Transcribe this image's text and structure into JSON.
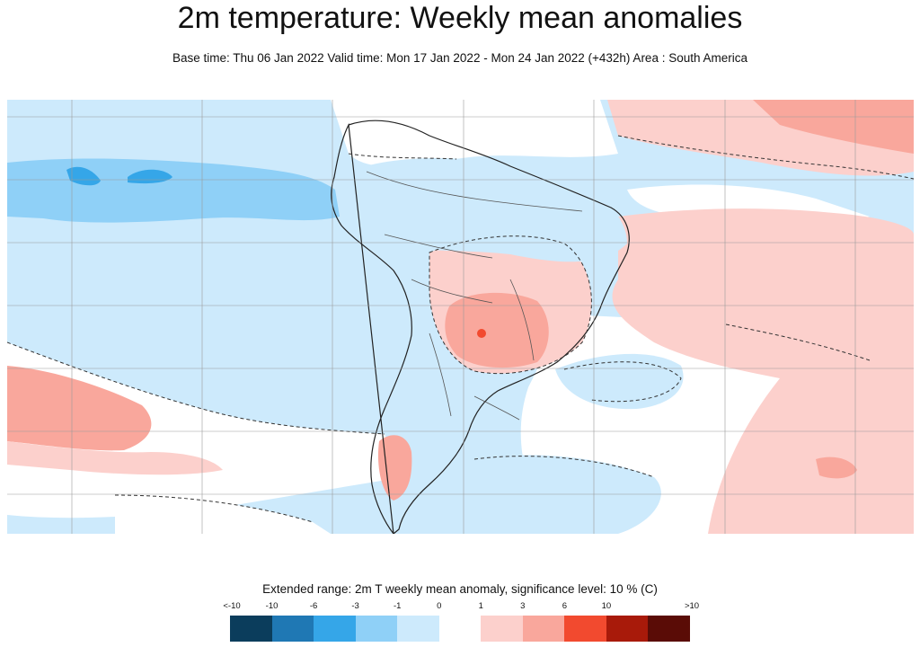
{
  "header": {
    "title": "2m temperature: Weekly mean anomalies",
    "subtitle": "Base time: Thu 06 Jan 2022 Valid time: Mon 17 Jan 2022 - Mon 24 Jan 2022 (+432h) Area : South America"
  },
  "legend": {
    "title": "Extended range: 2m T weekly mean anomaly, significance level: 10 % (C)",
    "ticks": [
      "<-10",
      "-10",
      "-6",
      "-3",
      "-1",
      "0",
      "1",
      "3",
      "6",
      "10",
      ">10"
    ],
    "colors": [
      "#0b3d5c",
      "#1f78b4",
      "#35a6e8",
      "#8fd0f7",
      "#cdeafc",
      "#ffffff",
      "#fcd0cc",
      "#f9a79c",
      "#f24a2f",
      "#a81a0a",
      "#5a0c06"
    ]
  },
  "map": {
    "palette": {
      "cool_light": "#cdeafc",
      "cool_medium": "#8fd0f7",
      "cool_strong": "#35a6e8",
      "warm_light": "#fcd0cc",
      "warm_medium": "#f9a79c",
      "warm_strong": "#f24a2f",
      "neutral": "#ffffff",
      "gridline": "#9a9a9a",
      "coastline": "#222222",
      "borders": "#555555"
    }
  }
}
